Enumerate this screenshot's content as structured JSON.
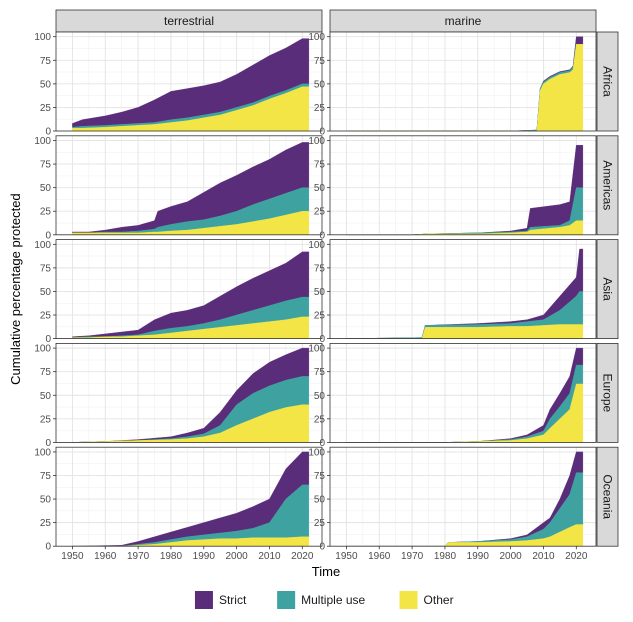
{
  "chart_data": {
    "type": "area",
    "stacked": true,
    "facet_columns": [
      "terrestrial",
      "marine"
    ],
    "facet_rows": [
      "Africa",
      "Americas",
      "Asia",
      "Europe",
      "Oceania"
    ],
    "xlabel": "Time",
    "ylabel": "Cumulative percentage protected",
    "xlim": [
      1945,
      2026
    ],
    "ylim": [
      0,
      105
    ],
    "xticks": [
      "1950",
      "1960",
      "1970",
      "1980",
      "1990",
      "2000",
      "2010",
      "2020"
    ],
    "yticks": [
      "0",
      "25",
      "50",
      "75",
      "100"
    ],
    "legend": {
      "position": "bottom",
      "entries": [
        {
          "name": "Strict",
          "color": "#5a2d7a"
        },
        {
          "name": "Multiple use",
          "color": "#3ea3a0"
        },
        {
          "name": "Other",
          "color": "#f4e547"
        }
      ]
    },
    "series_order": [
      "Other",
      "Multiple use",
      "Strict"
    ],
    "panels": [
      {
        "col": "terrestrial",
        "row": "Africa",
        "x": [
          1950,
          1953,
          1960,
          1965,
          1970,
          1975,
          1980,
          1985,
          1990,
          1995,
          2000,
          2005,
          2010,
          2015,
          2020,
          2022
        ],
        "other": [
          3,
          3,
          4,
          5,
          6,
          7,
          9,
          11,
          14,
          17,
          22,
          27,
          34,
          40,
          47,
          47
        ],
        "multiple": [
          4,
          5,
          6,
          7,
          8,
          9,
          12,
          14,
          17,
          20,
          25,
          30,
          37,
          43,
          50,
          50
        ],
        "total": [
          8,
          12,
          16,
          20,
          25,
          33,
          42,
          45,
          48,
          52,
          60,
          70,
          80,
          88,
          98,
          98
        ]
      },
      {
        "col": "marine",
        "row": "Africa",
        "x": [
          1950,
          1960,
          1970,
          1980,
          1990,
          2000,
          2008,
          2009,
          2010,
          2012,
          2015,
          2018,
          2019,
          2020,
          2022
        ],
        "other": [
          0,
          0,
          0,
          0,
          0,
          0,
          0,
          43,
          50,
          55,
          60,
          62,
          65,
          92,
          92
        ],
        "multiple": [
          0,
          0,
          0,
          0,
          0,
          0,
          1,
          45,
          52,
          57,
          62,
          64,
          68,
          92,
          92
        ],
        "total": [
          0,
          0,
          0,
          0,
          0,
          0,
          1,
          45,
          53,
          58,
          63,
          65,
          69,
          100,
          100
        ]
      },
      {
        "col": "terrestrial",
        "row": "Americas",
        "x": [
          1950,
          1955,
          1960,
          1965,
          1970,
          1975,
          1976,
          1980,
          1985,
          1990,
          1995,
          2000,
          2005,
          2010,
          2015,
          2020,
          2022
        ],
        "other": [
          2,
          2,
          2,
          2,
          2,
          3,
          3,
          4,
          5,
          7,
          9,
          11,
          14,
          17,
          21,
          25,
          25
        ],
        "multiple": [
          2,
          2,
          3,
          3,
          4,
          6,
          8,
          11,
          14,
          16,
          20,
          25,
          32,
          38,
          44,
          50,
          50
        ],
        "total": [
          3,
          3,
          5,
          8,
          10,
          15,
          25,
          30,
          35,
          45,
          55,
          63,
          72,
          80,
          90,
          98,
          98
        ]
      },
      {
        "col": "marine",
        "row": "Americas",
        "x": [
          1950,
          1970,
          1975,
          1990,
          2000,
          2005,
          2006,
          2015,
          2018,
          2020,
          2022
        ],
        "other": [
          0,
          0,
          1,
          1,
          2,
          3,
          5,
          8,
          10,
          15,
          15
        ],
        "multiple": [
          0,
          0,
          1,
          2,
          3,
          4,
          8,
          10,
          15,
          50,
          50
        ],
        "total": [
          0,
          0,
          1,
          2,
          4,
          7,
          28,
          32,
          35,
          95,
          95
        ]
      },
      {
        "col": "terrestrial",
        "row": "Asia",
        "x": [
          1950,
          1955,
          1960,
          1965,
          1970,
          1975,
          1980,
          1985,
          1990,
          1995,
          2000,
          2005,
          2010,
          2015,
          2020,
          2022
        ],
        "other": [
          1,
          1,
          2,
          2,
          3,
          4,
          6,
          8,
          10,
          12,
          14,
          16,
          18,
          20,
          23,
          23
        ],
        "multiple": [
          1,
          2,
          2,
          3,
          4,
          8,
          11,
          13,
          16,
          20,
          25,
          30,
          35,
          40,
          44,
          44
        ],
        "total": [
          2,
          3,
          5,
          7,
          9,
          20,
          27,
          30,
          35,
          45,
          55,
          64,
          72,
          80,
          92,
          92
        ]
      },
      {
        "col": "marine",
        "row": "Asia",
        "x": [
          1950,
          1973,
          1974,
          1990,
          2000,
          2005,
          2010,
          2015,
          2020,
          2021,
          2022
        ],
        "other": [
          0,
          0,
          12,
          12,
          13,
          13,
          14,
          15,
          15,
          15,
          15
        ],
        "multiple": [
          0,
          1,
          14,
          15,
          16,
          18,
          20,
          30,
          45,
          50,
          50
        ],
        "total": [
          0,
          1,
          14,
          16,
          18,
          20,
          25,
          45,
          65,
          95,
          95
        ]
      },
      {
        "col": "terrestrial",
        "row": "Europe",
        "x": [
          1950,
          1960,
          1970,
          1980,
          1985,
          1990,
          1995,
          2000,
          2005,
          2010,
          2015,
          2020,
          2022
        ],
        "other": [
          0,
          1,
          2,
          3,
          4,
          6,
          10,
          18,
          25,
          32,
          37,
          40,
          40
        ],
        "multiple": [
          0,
          1,
          2,
          4,
          6,
          9,
          18,
          40,
          52,
          60,
          66,
          70,
          70
        ],
        "total": [
          0,
          1,
          3,
          6,
          10,
          15,
          32,
          55,
          73,
          85,
          93,
          100,
          100
        ]
      },
      {
        "col": "marine",
        "row": "Europe",
        "x": [
          1950,
          1980,
          1990,
          2000,
          2005,
          2010,
          2012,
          2015,
          2018,
          2020,
          2022
        ],
        "other": [
          0,
          0,
          1,
          2,
          4,
          8,
          15,
          25,
          35,
          62,
          62
        ],
        "multiple": [
          0,
          0,
          1,
          3,
          6,
          12,
          25,
          38,
          52,
          82,
          82
        ],
        "total": [
          0,
          0,
          1,
          4,
          8,
          18,
          35,
          52,
          70,
          100,
          100
        ]
      },
      {
        "col": "terrestrial",
        "row": "Oceania",
        "x": [
          1950,
          1965,
          1970,
          1975,
          1980,
          1985,
          1990,
          1995,
          2000,
          2005,
          2010,
          2015,
          2020,
          2022
        ],
        "other": [
          0,
          0,
          1,
          2,
          4,
          6,
          7,
          8,
          8,
          9,
          9,
          9,
          10,
          10
        ],
        "multiple": [
          0,
          0,
          2,
          4,
          7,
          10,
          12,
          14,
          16,
          19,
          25,
          50,
          65,
          65
        ],
        "total": [
          0,
          1,
          5,
          10,
          15,
          20,
          25,
          30,
          35,
          42,
          50,
          82,
          100,
          100
        ]
      },
      {
        "col": "marine",
        "row": "Oceania",
        "x": [
          1950,
          1980,
          1981,
          1990,
          2000,
          2005,
          2010,
          2012,
          2015,
          2018,
          2020,
          2022
        ],
        "other": [
          0,
          0,
          4,
          4,
          5,
          6,
          8,
          10,
          15,
          20,
          23,
          23
        ],
        "multiple": [
          0,
          0,
          4,
          5,
          7,
          10,
          18,
          25,
          40,
          55,
          78,
          78
        ],
        "total": [
          0,
          0,
          4,
          5,
          8,
          12,
          25,
          30,
          50,
          75,
          100,
          100
        ]
      }
    ]
  }
}
